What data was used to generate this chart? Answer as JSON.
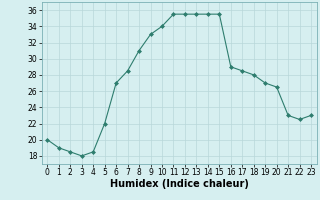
{
  "x": [
    0,
    1,
    2,
    3,
    4,
    5,
    6,
    7,
    8,
    9,
    10,
    11,
    12,
    13,
    14,
    15,
    16,
    17,
    18,
    19,
    20,
    21,
    22,
    23
  ],
  "y": [
    20,
    19,
    18.5,
    18,
    18.5,
    22,
    27,
    28.5,
    31,
    33,
    34,
    35.5,
    35.5,
    35.5,
    35.5,
    35.5,
    29,
    28.5,
    28,
    27,
    26.5,
    23,
    22.5,
    23
  ],
  "line_color": "#2e7d6e",
  "marker": "D",
  "marker_size": 2.0,
  "bg_color": "#d6eff0",
  "grid_color": "#b8d8da",
  "xlabel": "Humidex (Indice chaleur)",
  "xlabel_fontsize": 7,
  "tick_fontsize": 5.5,
  "ylim": [
    17,
    37
  ],
  "xlim": [
    -0.5,
    23.5
  ],
  "yticks": [
    18,
    20,
    22,
    24,
    26,
    28,
    30,
    32,
    34,
    36
  ],
  "xticks": [
    0,
    1,
    2,
    3,
    4,
    5,
    6,
    7,
    8,
    9,
    10,
    11,
    12,
    13,
    14,
    15,
    16,
    17,
    18,
    19,
    20,
    21,
    22,
    23
  ]
}
